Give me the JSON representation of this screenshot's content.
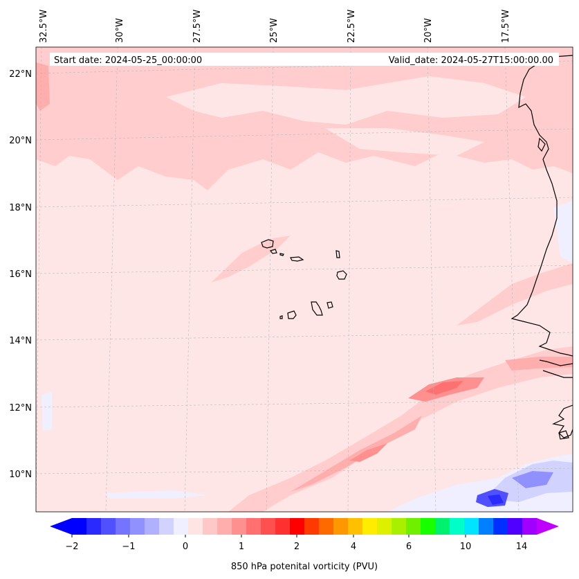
{
  "map": {
    "header": {
      "start_date": "Start date: 2024-05-25_00:00:00",
      "valid_date": "Valid_date: 2024-05-27T15:00:00.00"
    },
    "lon_labels": [
      "32.5°W",
      "30°W",
      "27.5°W",
      "25°W",
      "22.5°W",
      "20°W",
      "17.5°W"
    ],
    "lat_labels": [
      "22°N",
      "20°N",
      "18°N",
      "16°N",
      "14°N",
      "12°N",
      "10°N"
    ]
  },
  "colorbar": {
    "label": "850 hPa potenital vorticity (PVU)",
    "ticks": [
      "−2",
      "−1",
      "0",
      "1",
      "2",
      "4",
      "6",
      "10",
      "14"
    ],
    "colors": [
      "#0000ff",
      "#2a2aff",
      "#5050ff",
      "#7474ff",
      "#9090ff",
      "#b0b0ff",
      "#d2d2ff",
      "#efefff",
      "#ffe4e4",
      "#ffc8c8",
      "#ffaeae",
      "#ff9090",
      "#ff7070",
      "#ff5050",
      "#ff3030",
      "#ff0000",
      "#ff3a00",
      "#ff6a00",
      "#ff9800",
      "#ffc000",
      "#ffec00",
      "#dcf000",
      "#a8f000",
      "#70f000",
      "#18ff00",
      "#00f070",
      "#00ffc8",
      "#00e4ff",
      "#0080ff",
      "#0030ff",
      "#5000ff",
      "#a000ff"
    ],
    "extend_low_color": "#0000ff",
    "extend_high_color": "#c000ff"
  }
}
